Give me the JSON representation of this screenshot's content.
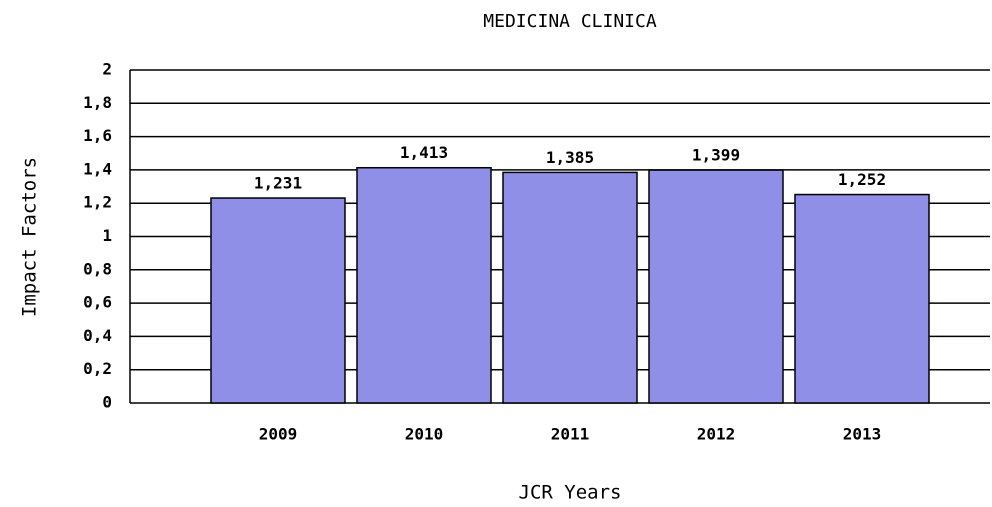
{
  "chart_data": {
    "type": "bar",
    "title": "MEDICINA CLINICA",
    "x_label": "JCR Years",
    "y_label": "Impact Factors",
    "categories": [
      "2009",
      "2010",
      "2011",
      "2012",
      "2013"
    ],
    "values": [
      1.231,
      1.413,
      1.385,
      1.399,
      1.252
    ],
    "value_labels": [
      "1,231",
      "1,413",
      "1,385",
      "1,399",
      "1,252"
    ],
    "color": "#8f8fe8",
    "ylim": [
      0,
      2
    ],
    "yticks": [
      0,
      {
        "value": 0.2,
        "label": "0,2"
      },
      {
        "value": 0.4,
        "label": "0,4"
      },
      {
        "value": 0.6,
        "label": "0,6"
      },
      {
        "value": 0.8,
        "label": "0,8"
      },
      1,
      {
        "value": 1.2,
        "label": "1,2"
      },
      {
        "value": 1.4,
        "label": "1,4"
      },
      {
        "value": 1.6,
        "label": "1,6"
      },
      {
        "value": 1.8,
        "label": "1,8"
      },
      2
    ],
    "grid": true
  }
}
